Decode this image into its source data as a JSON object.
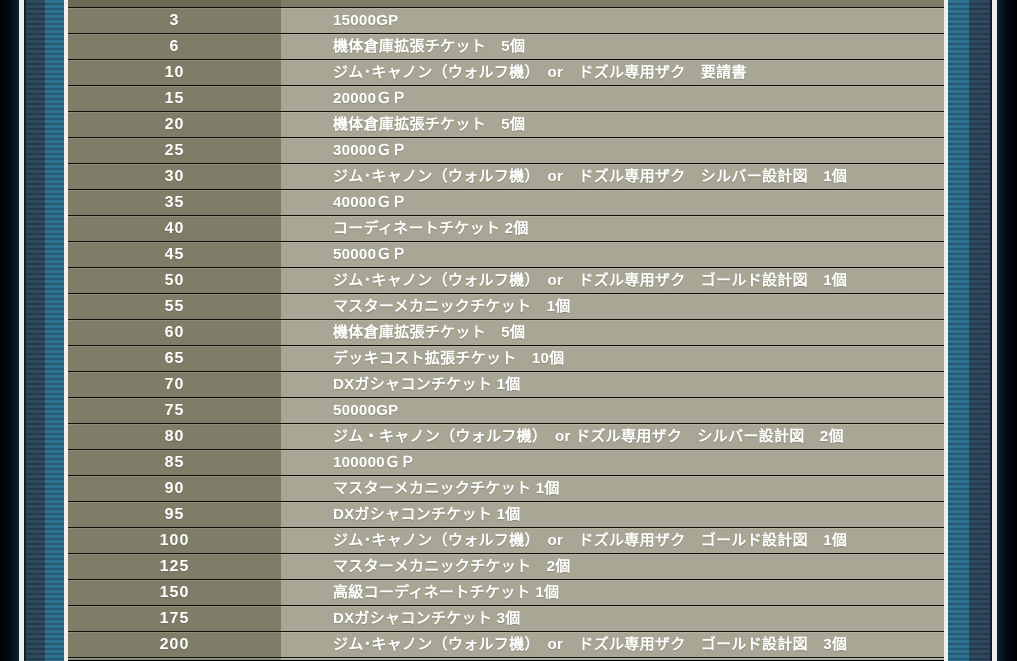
{
  "page": {
    "description_colors": {
      "outer_background": "#000000",
      "frame_white_line": "#f0efec",
      "frame_stripe_navy": "#30495f",
      "frame_stripe_teal": "#2e7391",
      "level_column_bg": "#7e7d68",
      "reward_column_bg": "#a8a796",
      "row_text": "#ffffff"
    }
  },
  "table": {
    "columns": [
      {
        "key": "level",
        "label": ""
      },
      {
        "key": "reward",
        "label": ""
      }
    ],
    "rows": [
      {
        "level": "3",
        "reward": "15000GP"
      },
      {
        "level": "6",
        "reward": "機体倉庫拡張チケット　5個"
      },
      {
        "level": "10",
        "reward": "ジム･キャノン（ウォルフ機）　or　ドズル専用ザク　要請書"
      },
      {
        "level": "15",
        "reward": "20000ＧＰ"
      },
      {
        "level": "20",
        "reward": "機体倉庫拡張チケット　5個"
      },
      {
        "level": "25",
        "reward": "30000ＧＰ"
      },
      {
        "level": "30",
        "reward": "ジム･キャノン（ウォルフ機）　or　ドズル専用ザク　シルバー設計図　1個"
      },
      {
        "level": "35",
        "reward": "40000ＧＰ"
      },
      {
        "level": "40",
        "reward": "コーディネートチケット 2個"
      },
      {
        "level": "45",
        "reward": "50000ＧＰ"
      },
      {
        "level": "50",
        "reward": "ジム･キャノン（ウォルフ機）　or　ドズル専用ザク　ゴールド設計図　1個"
      },
      {
        "level": "55",
        "reward": "マスターメカニックチケット　1個"
      },
      {
        "level": "60",
        "reward": "機体倉庫拡張チケット　5個"
      },
      {
        "level": "65",
        "reward": "デッキコスト拡張チケット　10個"
      },
      {
        "level": "70",
        "reward": "DXガシャコンチケット 1個"
      },
      {
        "level": "75",
        "reward": "50000GP"
      },
      {
        "level": "80",
        "reward": "ジム・キャノン（ウォルフ機）　or ドズル専用ザク　シルバー設計図　2個"
      },
      {
        "level": "85",
        "reward": "100000ＧＰ"
      },
      {
        "level": "90",
        "reward": "マスターメカニックチケット 1個"
      },
      {
        "level": "95",
        "reward": "DXガシャコンチケット 1個"
      },
      {
        "level": "100",
        "reward": "ジム･キャノン（ウォルフ機）　or　ドズル専用ザク　ゴールド設計図　1個"
      },
      {
        "level": "125",
        "reward": "マスターメカニックチケット　2個"
      },
      {
        "level": "150",
        "reward": "高級コーディネートチケット 1個"
      },
      {
        "level": "175",
        "reward": "DXガシャコンチケット 3個"
      },
      {
        "level": "200",
        "reward": "ジム･キャノン（ウォルフ機）　or　ドズル専用ザク　ゴールド設計図　3個"
      }
    ]
  }
}
